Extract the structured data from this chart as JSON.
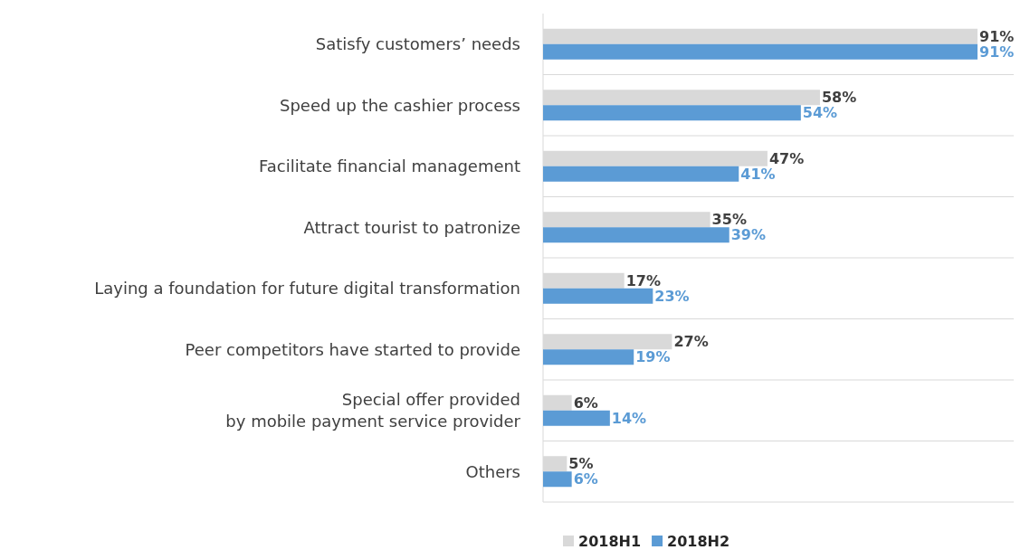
{
  "chart_data": {
    "type": "bar",
    "orientation": "horizontal",
    "categories": [
      "Satisfy customers’ needs",
      "Speed up the cashier process",
      "Facilitate financial management",
      "Attract tourist to patronize",
      "Laying a foundation for future digital transformation",
      "Peer competitors have started to provide",
      "Special offer provided\nby mobile payment service provider",
      "Others"
    ],
    "series": [
      {
        "name": "2018H1",
        "color": "#d9d9d9",
        "values": [
          91,
          58,
          47,
          35,
          17,
          27,
          6,
          5
        ],
        "value_labels": [
          "91%",
          "58%",
          "47%",
          "35%",
          "17%",
          "27%",
          "6%",
          "5%"
        ]
      },
      {
        "name": "2018H2",
        "color": "#5b9bd5",
        "values": [
          91,
          54,
          41,
          39,
          23,
          19,
          14,
          6
        ],
        "value_labels": [
          "91%",
          "54%",
          "41%",
          "39%",
          "23%",
          "19%",
          "14%",
          "6%"
        ]
      }
    ],
    "legend": "bottom",
    "tick_labels": "y"
  }
}
